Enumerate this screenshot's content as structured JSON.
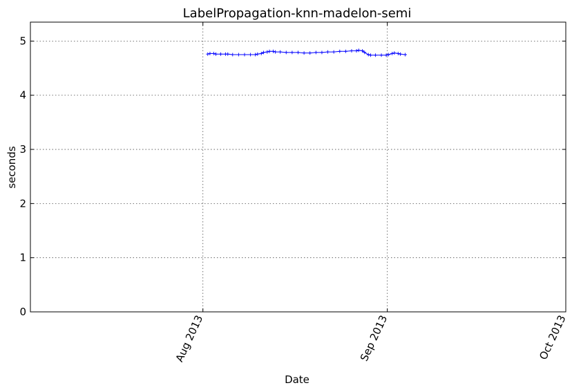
{
  "chart_data": {
    "type": "line",
    "title": "LabelPropagation-knn-madelon-semi",
    "xlabel": "Date",
    "ylabel": "seconds",
    "x_axis_type": "date",
    "xlim": [
      "2013-07-03",
      "2013-10-01"
    ],
    "ylim": [
      0,
      5.35
    ],
    "grid": true,
    "x_ticks": [
      {
        "date": "2013-08-01",
        "label": "Aug 2013"
      },
      {
        "date": "2013-09-01",
        "label": "Sep 2013"
      },
      {
        "date": "2013-10-01",
        "label": "Oct 2013"
      }
    ],
    "y_ticks": [
      0,
      1,
      2,
      3,
      4,
      5
    ],
    "series": [
      {
        "color": "#0000ff",
        "marker": "+",
        "points": [
          [
            "2013-08-02",
            4.76
          ],
          [
            "2013-08-02",
            4.77
          ],
          [
            "2013-08-03",
            4.77
          ],
          [
            "2013-08-03",
            4.76
          ],
          [
            "2013-08-04",
            4.76
          ],
          [
            "2013-08-05",
            4.76
          ],
          [
            "2013-08-05",
            4.76
          ],
          [
            "2013-08-06",
            4.75
          ],
          [
            "2013-08-07",
            4.75
          ],
          [
            "2013-08-08",
            4.75
          ],
          [
            "2013-08-09",
            4.75
          ],
          [
            "2013-08-10",
            4.75
          ],
          [
            "2013-08-10",
            4.76
          ],
          [
            "2013-08-11",
            4.77
          ],
          [
            "2013-08-11",
            4.79
          ],
          [
            "2013-08-12",
            4.8
          ],
          [
            "2013-08-12",
            4.81
          ],
          [
            "2013-08-13",
            4.81
          ],
          [
            "2013-08-13",
            4.8
          ],
          [
            "2013-08-14",
            4.8
          ],
          [
            "2013-08-15",
            4.79
          ],
          [
            "2013-08-16",
            4.79
          ],
          [
            "2013-08-17",
            4.79
          ],
          [
            "2013-08-18",
            4.78
          ],
          [
            "2013-08-19",
            4.78
          ],
          [
            "2013-08-20",
            4.79
          ],
          [
            "2013-08-21",
            4.79
          ],
          [
            "2013-08-22",
            4.8
          ],
          [
            "2013-08-23",
            4.8
          ],
          [
            "2013-08-24",
            4.81
          ],
          [
            "2013-08-25",
            4.81
          ],
          [
            "2013-08-26",
            4.82
          ],
          [
            "2013-08-27",
            4.82
          ],
          [
            "2013-08-27",
            4.83
          ],
          [
            "2013-08-28",
            4.82
          ],
          [
            "2013-08-28",
            4.79
          ],
          [
            "2013-08-29",
            4.75
          ],
          [
            "2013-08-29",
            4.74
          ],
          [
            "2013-08-30",
            4.74
          ],
          [
            "2013-08-31",
            4.74
          ],
          [
            "2013-09-01",
            4.74
          ],
          [
            "2013-09-01",
            4.75
          ],
          [
            "2013-09-02",
            4.77
          ],
          [
            "2013-09-02",
            4.78
          ],
          [
            "2013-09-03",
            4.77
          ],
          [
            "2013-09-03",
            4.76
          ],
          [
            "2013-09-04",
            4.75
          ]
        ]
      }
    ]
  }
}
